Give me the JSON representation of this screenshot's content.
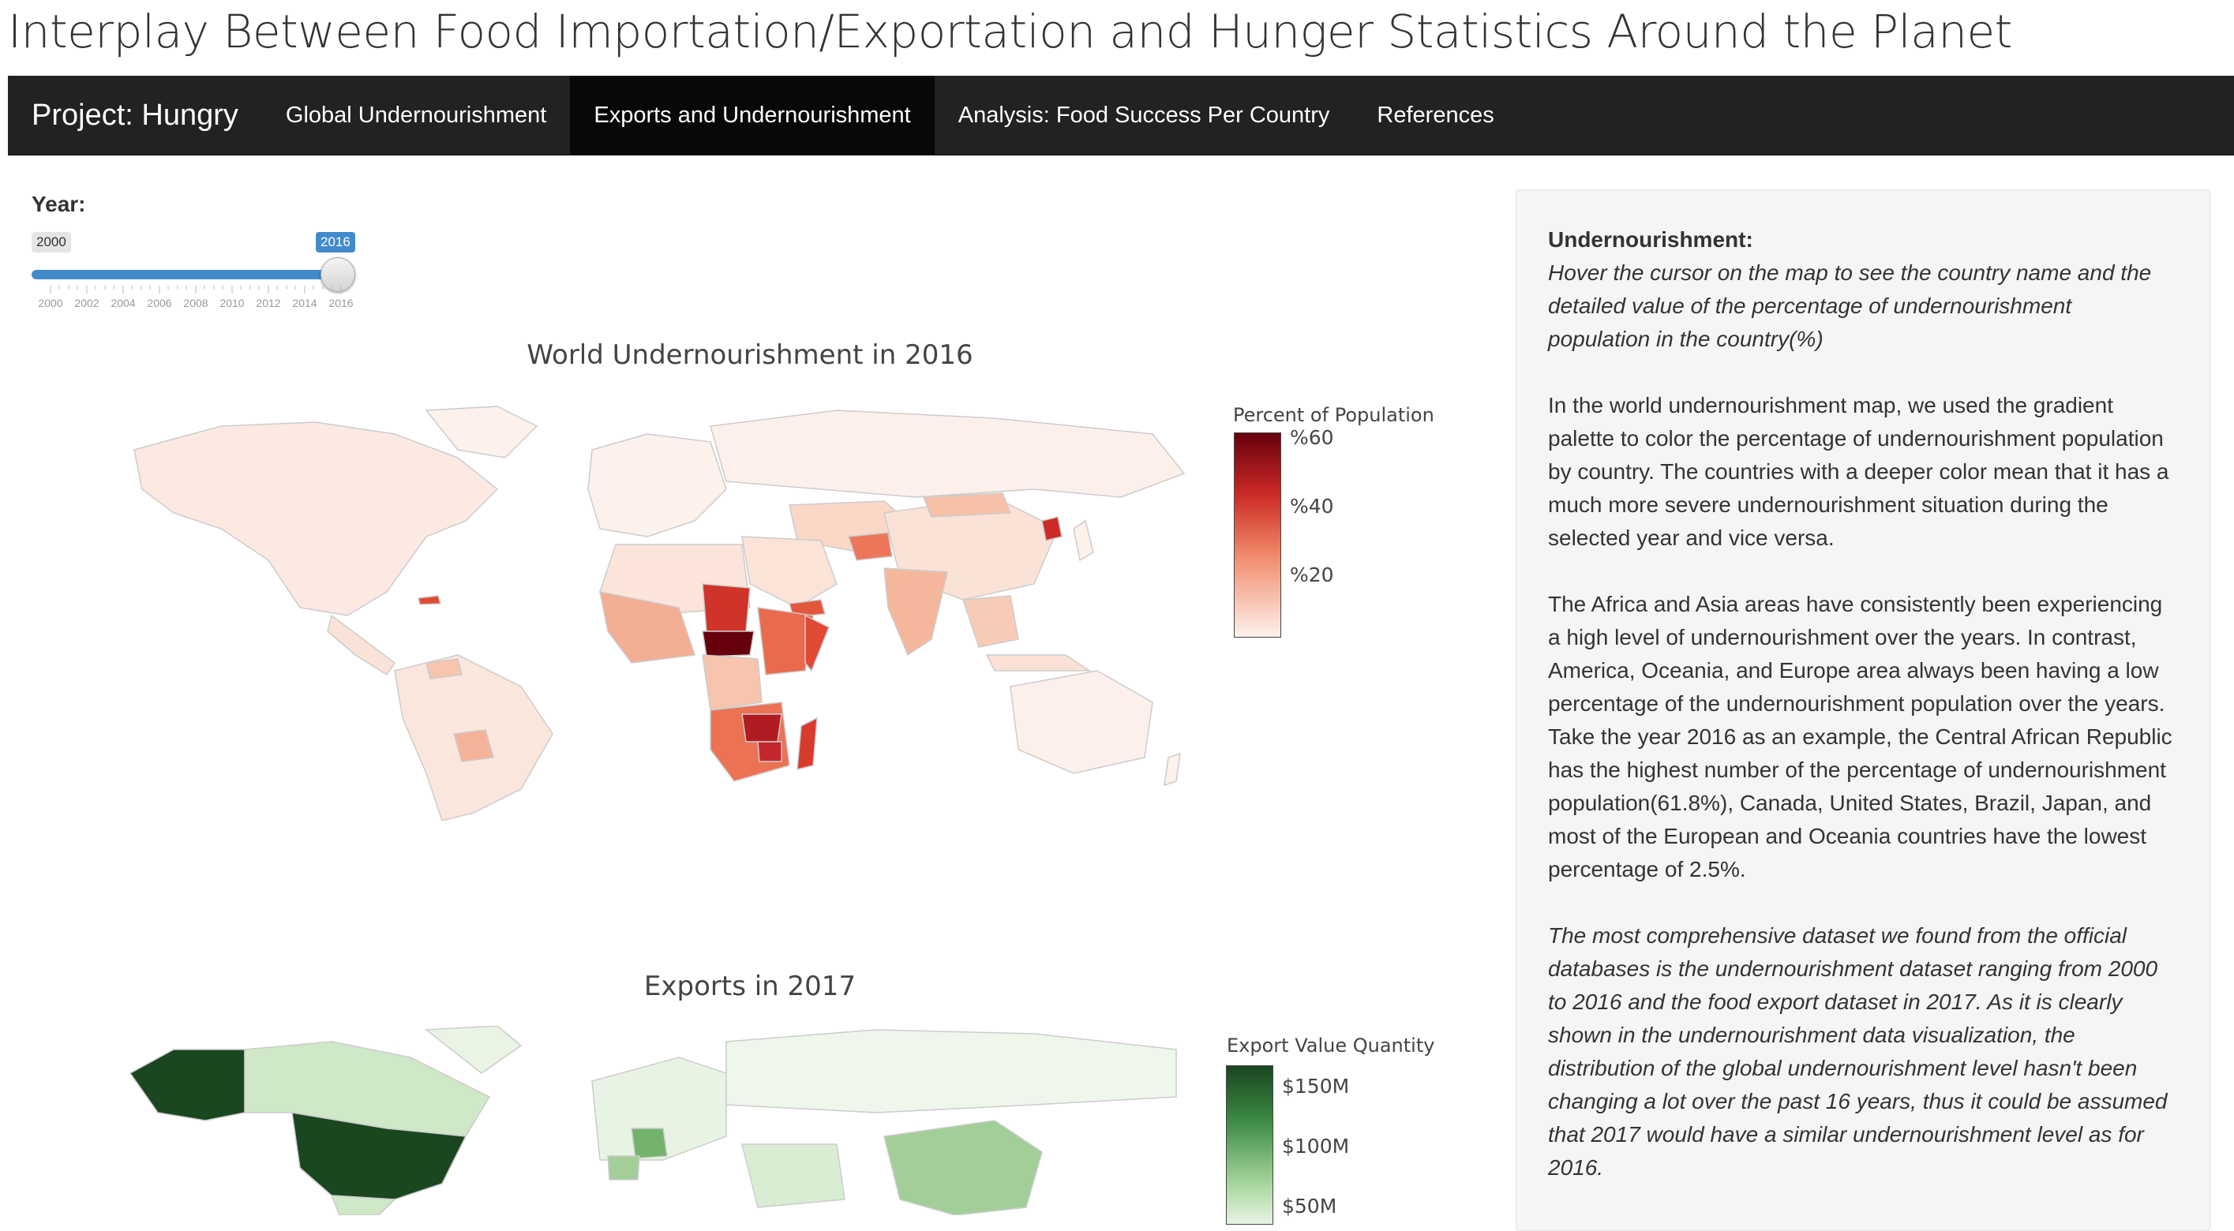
{
  "page": {
    "title": "Interplay Between Food Importation/Exportation and Hunger Statistics Around the Planet"
  },
  "navbar": {
    "brand": "Project: Hungry",
    "items": [
      {
        "label": "Global Undernourishment",
        "active": false
      },
      {
        "label": "Exports and Undernourishment",
        "active": true
      },
      {
        "label": "Analysis: Food Success Per Country",
        "active": false
      },
      {
        "label": "References",
        "active": false
      }
    ]
  },
  "year_input": {
    "label": "Year:",
    "min_label": "2000",
    "max_label": "2016",
    "min": 2000,
    "max": 2016,
    "value": 2016,
    "ticks": [
      "2000",
      "2002",
      "2004",
      "2006",
      "2008",
      "2010",
      "2012",
      "2014",
      "2016"
    ]
  },
  "map_undernourishment": {
    "title": "World Undernourishment in 2016",
    "legend_title": "Percent of Population",
    "legend_ticks": [
      "%60",
      "%40",
      "%20"
    ],
    "color_low": "#fdf1ec",
    "color_high": "#67000d"
  },
  "map_exports": {
    "title": "Exports in 2017",
    "legend_title": "Export Value Quantity",
    "legend_ticks": [
      "$150M",
      "$100M",
      "$50M"
    ],
    "color_low": "#f1f8ee",
    "color_high": "#1a4620"
  },
  "info_panel": {
    "heading": "Undernourishment:",
    "hover_hint": "Hover the cursor on the map to see the country name and the detailed value of the percentage of undernourishment population in the country(%)",
    "paragraph1": "In the world undernourishment map, we used the gradient palette to color the percentage of undernourishment population by country. The countries with a deeper color mean that it has a much more severe undernourishment situation during the selected year and vice versa.",
    "paragraph2": "The Africa and Asia areas have consistently been experiencing a high level of undernourishment over the years. In contrast, America, Oceania, and Europe area always been having a low percentage of the undernourishment population over the years. Take the year 2016 as an example, the Central African Republic has the highest number of the percentage of undernourishment population(61.8%), Canada, United States, Brazil, Japan, and most of the European and Oceania countries have the lowest percentage of 2.5%.",
    "paragraph3": "The most comprehensive dataset we found from the official databases is the undernourishment dataset ranging from 2000 to 2016 and the food export dataset in 2017. As it is clearly shown in the undernourishment data visualization, the distribution of the global undernourishment level hasn't been changing a lot over the past 16 years, thus it could be assumed that 2017 would have a similar undernourishment level as for 2016."
  }
}
